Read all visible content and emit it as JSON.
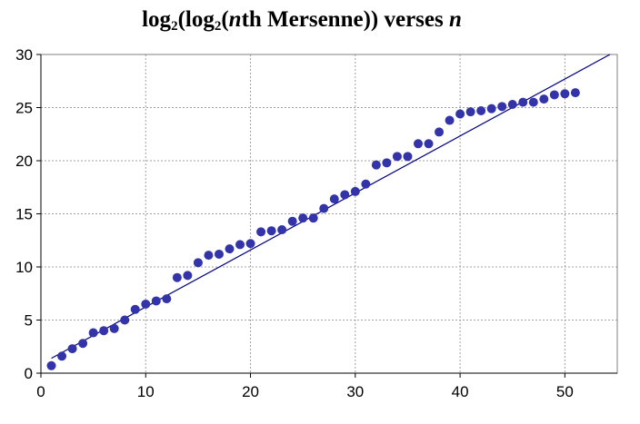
{
  "chart_data": {
    "type": "scatter",
    "title": {
      "p1": "log",
      "s1": "2",
      "p2": "(log",
      "s2": "2",
      "p3": "(",
      "n1": "n",
      "p4": "th Mersenne)) verses ",
      "n2": "n"
    },
    "xlim": [
      0,
      55
    ],
    "ylim": [
      0,
      30
    ],
    "xticks": [
      0,
      10,
      20,
      30,
      40,
      50
    ],
    "yticks": [
      0,
      5,
      10,
      15,
      20,
      25,
      30
    ],
    "grid": true,
    "legend": "none",
    "colors": {
      "points": "#3333aa",
      "line": "#000080",
      "grid": "#a0a0a0"
    },
    "series": [
      {
        "x": [
          1,
          2,
          3,
          4,
          5,
          6,
          7,
          8,
          9,
          10,
          11,
          12,
          13,
          14,
          15,
          16,
          17,
          18,
          19,
          20,
          21,
          22,
          23,
          24,
          25,
          26,
          27,
          28,
          29,
          30,
          31,
          32,
          33,
          34,
          35,
          36,
          37,
          38,
          39,
          40,
          41,
          42,
          43,
          44,
          45,
          46,
          47,
          48,
          49,
          50,
          51
        ],
        "y": [
          0.7,
          1.6,
          2.3,
          2.8,
          3.8,
          4.0,
          4.2,
          5.0,
          6.0,
          6.5,
          6.8,
          7.0,
          9.0,
          9.2,
          10.4,
          11.1,
          11.2,
          11.7,
          12.1,
          12.2,
          13.3,
          13.4,
          13.5,
          14.3,
          14.6,
          14.6,
          15.5,
          16.4,
          16.8,
          17.1,
          17.8,
          19.6,
          19.8,
          20.4,
          20.4,
          21.6,
          21.6,
          22.7,
          23.8,
          24.4,
          24.6,
          24.7,
          24.9,
          25.1,
          25.3,
          25.5,
          25.5,
          25.8,
          26.2,
          26.3,
          26.4
        ]
      }
    ],
    "trendline": {
      "type": "linear",
      "x_range": [
        1,
        54.3
      ],
      "y_range": [
        1.4,
        30
      ]
    }
  }
}
